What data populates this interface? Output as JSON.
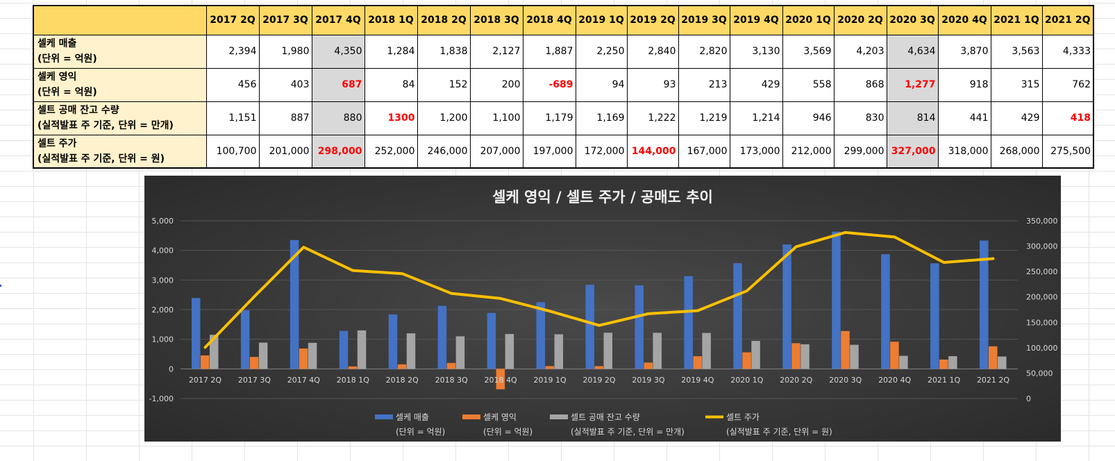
{
  "table": {
    "columns": [
      "2017 2Q",
      "2017 3Q",
      "2017 4Q",
      "2018 1Q",
      "2018 2Q",
      "2018 3Q",
      "2018 4Q",
      "2019 1Q",
      "2019 2Q",
      "2019 3Q",
      "2019 4Q",
      "2020 1Q",
      "2020 2Q",
      "2020 3Q",
      "2020 4Q",
      "2021 1Q",
      "2021 2Q"
    ],
    "rows": [
      {
        "label_line1": "셀케 매출",
        "label_line2": "(단위 = 억원)",
        "values": [
          "2,394",
          "1,980",
          "4,350",
          "1,284",
          "1,838",
          "2,127",
          "1,887",
          "2,250",
          "2,840",
          "2,820",
          "3,130",
          "3,569",
          "4,203",
          "4,634",
          "3,870",
          "3,563",
          "4,333"
        ],
        "red_indices": []
      },
      {
        "label_line1": "셀케 영익",
        "label_line2": "(단위 = 억원)",
        "values": [
          "456",
          "403",
          "687",
          "84",
          "152",
          "200",
          "-689",
          "94",
          "93",
          "213",
          "429",
          "558",
          "868",
          "1,277",
          "918",
          "315",
          "762"
        ],
        "red_indices": [
          2,
          6,
          13
        ]
      },
      {
        "label_line1": "셀트 공매 잔고 수량",
        "label_line2": "(실적발표 주 기준, 단위 = 만개)",
        "values": [
          "1,151",
          "887",
          "880",
          "1300",
          "1,200",
          "1,100",
          "1,179",
          "1,169",
          "1,222",
          "1,219",
          "1,214",
          "946",
          "830",
          "814",
          "441",
          "429",
          "418"
        ],
        "red_indices": [
          3,
          16
        ]
      },
      {
        "label_line1": "셀트 주가",
        "label_line2": "(실적발표 주 기준, 단위 = 원)",
        "values": [
          "100,700",
          "201,000",
          "298,000",
          "252,000",
          "246,000",
          "207,000",
          "197,000",
          "172,000",
          "144,000",
          "167,000",
          "173,000",
          "212,000",
          "299,000",
          "327,000",
          "318,000",
          "268,000",
          "275,500"
        ],
        "red_indices": [
          2,
          8,
          13
        ]
      }
    ],
    "highlight_columns": [
      2,
      13
    ],
    "colors": {
      "header_bg": "#ffd966",
      "label_bg": "#fff2cc",
      "highlight_bg": "#d9d9d9",
      "red_text": "#ff0000"
    }
  },
  "chart_data": {
    "type": "bar",
    "title": "셀케 영익 / 셀트 주가 / 공매도 추이",
    "categories": [
      "2017 2Q",
      "2017 3Q",
      "2017 4Q",
      "2018 1Q",
      "2018 2Q",
      "2018 3Q",
      "2018 4Q",
      "2019 1Q",
      "2019 2Q",
      "2019 3Q",
      "2019 4Q",
      "2020 1Q",
      "2020 2Q",
      "2020 3Q",
      "2020 4Q",
      "2021 1Q",
      "2021 2Q"
    ],
    "series": [
      {
        "name": "셀케 매출",
        "sub": "(단위 = 억원)",
        "type": "bar",
        "axis": "left",
        "color": "#4472c4",
        "values": [
          2394,
          1980,
          4350,
          1284,
          1838,
          2127,
          1887,
          2250,
          2840,
          2820,
          3130,
          3569,
          4203,
          4634,
          3870,
          3563,
          4333
        ]
      },
      {
        "name": "셀케 영익",
        "sub": "(단위 = 억원)",
        "type": "bar",
        "axis": "left",
        "color": "#ed7d31",
        "values": [
          456,
          403,
          687,
          84,
          152,
          200,
          -689,
          94,
          93,
          213,
          429,
          558,
          868,
          1277,
          918,
          315,
          762
        ]
      },
      {
        "name": "셀트 공매 잔고 수량",
        "sub": "(실적발표 주 기준, 단위 = 만개)",
        "type": "bar",
        "axis": "left",
        "color": "#a5a5a5",
        "values": [
          1151,
          887,
          880,
          1300,
          1200,
          1100,
          1179,
          1169,
          1222,
          1219,
          1214,
          946,
          830,
          814,
          441,
          429,
          418
        ]
      },
      {
        "name": "셀트 주가",
        "sub": "(실적발표 주 기준, 단위 = 원)",
        "type": "line",
        "axis": "right",
        "color": "#ffc000",
        "values": [
          100700,
          201000,
          298000,
          252000,
          246000,
          207000,
          197000,
          172000,
          144000,
          167000,
          173000,
          212000,
          299000,
          327000,
          318000,
          268000,
          275500
        ]
      }
    ],
    "ylim": [
      -1000,
      5000
    ],
    "yticks": [
      -1000,
      0,
      1000,
      2000,
      3000,
      4000,
      5000
    ],
    "ytick_labels": [
      "-1,000",
      "0",
      "1,000",
      "2,000",
      "3,000",
      "4,000",
      "5,000"
    ],
    "y2lim": [
      0,
      350000
    ],
    "y2ticks": [
      0,
      50000,
      100000,
      150000,
      200000,
      250000,
      300000,
      350000
    ],
    "y2tick_labels": [
      "0",
      "50,000",
      "100,000",
      "150,000",
      "200,000",
      "250,000",
      "300,000",
      "350,000"
    ],
    "grid": true,
    "legend": "bottom",
    "colors": {
      "background": "#3a3a3a",
      "text": "#d9d9d9",
      "title": "#f2f2f2",
      "grid": "#555555"
    }
  }
}
